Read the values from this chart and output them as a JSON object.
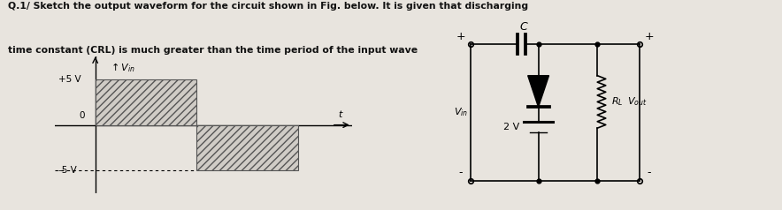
{
  "title_line1": "Q.1/ Sketch the output waveform for the circuit shown in Fig. below. It is given that discharging",
  "title_line2": "time constant (CRL) is much greater than the time period of the input wave",
  "bg_color": "#e8e4de",
  "text_color": "#111111",
  "waveform": {
    "xlabel": "t",
    "ylabel": "Vin",
    "plus5_label": "+5 V",
    "minus5_label": "-5 V",
    "zero_label": "0",
    "hatching": "////"
  },
  "circuit": {
    "cap_label": "C",
    "vin_label": "Vin",
    "batt_label": "2 V",
    "rl_label": "RL",
    "vout_label": "Vout"
  }
}
